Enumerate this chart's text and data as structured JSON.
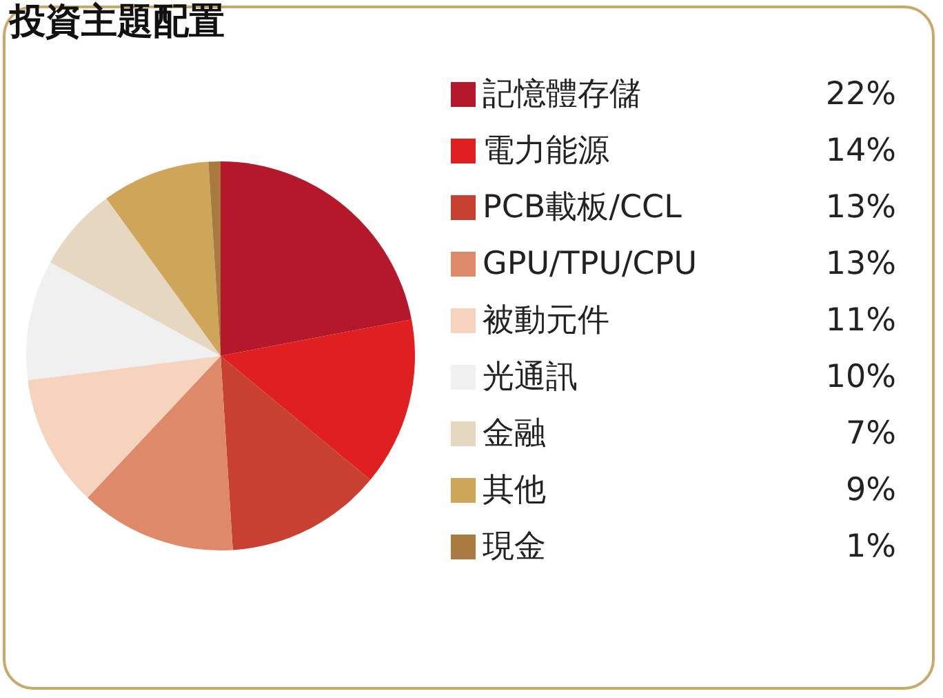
{
  "chart_data": {
    "type": "pie",
    "title": "投資主題配置",
    "categories": [
      "記憶體存儲",
      "電力能源",
      "PCB載板/CCL",
      "GPU/TPU/CPU",
      "被動元件",
      "光通訊",
      "金融",
      "其他",
      "現金"
    ],
    "values": [
      22,
      14,
      13,
      13,
      11,
      10,
      7,
      9,
      1
    ],
    "colors": [
      "#b5182b",
      "#e02020",
      "#c84032",
      "#de8a6a",
      "#f5d3bc",
      "#f0f0f0",
      "#e6d7c0",
      "#cfa55a",
      "#a87a40"
    ],
    "value_labels": [
      "22%",
      "14%",
      "13%",
      "13%",
      "11%",
      "10%",
      "7%",
      "9%",
      "1%"
    ],
    "legend": "right"
  }
}
